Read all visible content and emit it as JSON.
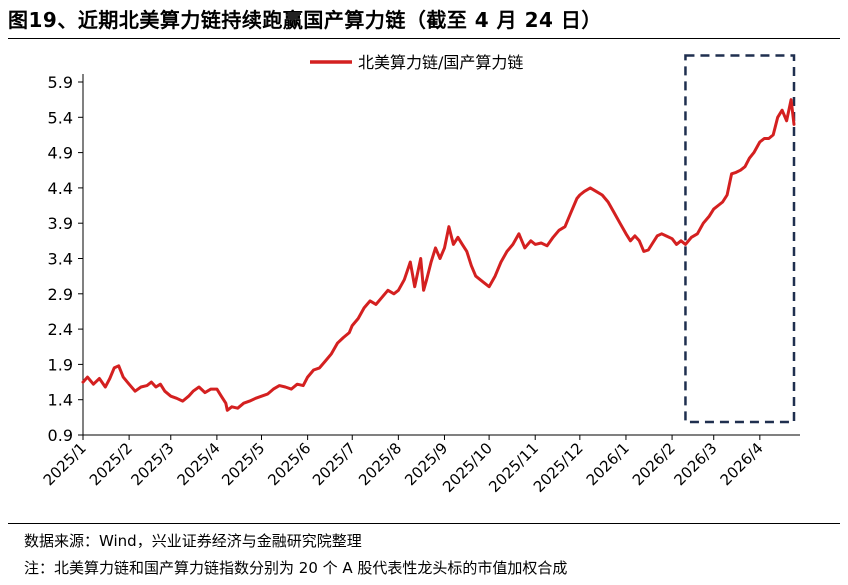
{
  "title": "图19、近期北美算力链持续跑赢国产算力链（截至 4 月 24 日）",
  "source": "数据来源：Wind，兴业证券经济与金融研究院整理",
  "note": "注：北美算力链和国产算力链指数分别为 20 个 A 股代表性龙头标的市值加权合成",
  "colors": {
    "line": "#d42020",
    "highlight_box": "#1f2f4f",
    "axis": "#000000"
  },
  "chart_data": {
    "type": "line",
    "title": "",
    "xlabel": "",
    "ylabel": "",
    "ylim": [
      0.9,
      5.9
    ],
    "yticks": [
      0.9,
      1.4,
      1.9,
      2.4,
      2.9,
      3.4,
      3.9,
      4.4,
      4.9,
      5.4,
      5.9
    ],
    "yticklabels": [
      "0.9",
      "1.4",
      "1.9",
      "2.4",
      "2.9",
      "3.4",
      "3.9",
      "4.4",
      "4.9",
      "5.4",
      "5.9"
    ],
    "xlim": [
      "2025-01-01",
      "2026-04-28"
    ],
    "xticks": [
      "2025-01-01",
      "2025-02-01",
      "2025-03-01",
      "2025-04-01",
      "2025-05-01",
      "2025-06-01",
      "2025-07-01",
      "2025-08-01",
      "2025-09-01",
      "2025-10-01",
      "2025-11-01",
      "2025-12-01",
      "2026-01-01",
      "2026-02-01",
      "2026-03-01",
      "2026-04-01"
    ],
    "xticklabels": [
      "2025/1",
      "2025/2",
      "2025/3",
      "2025/4",
      "2025/5",
      "2025/6",
      "2025/7",
      "2025/8",
      "2025/9",
      "2025/10",
      "2025/11",
      "2025/12",
      "2026/1",
      "2026/2",
      "2026/3",
      "2026/4"
    ],
    "grid": false,
    "legend_position": "top",
    "highlight": {
      "x": [
        "2026-02-10",
        "2026-04-28"
      ],
      "y": [
        1.0,
        5.85
      ],
      "style": "dashed"
    },
    "series": [
      {
        "name": "北美算力链/国产算力链",
        "x": [
          "2025-01-01",
          "2025-01-04",
          "2025-01-08",
          "2025-01-12",
          "2025-01-16",
          "2025-01-19",
          "2025-01-22",
          "2025-01-25",
          "2025-01-28",
          "2025-02-01",
          "2025-02-05",
          "2025-02-09",
          "2025-02-13",
          "2025-02-16",
          "2025-02-19",
          "2025-02-22",
          "2025-02-25",
          "2025-03-01",
          "2025-03-05",
          "2025-03-09",
          "2025-03-13",
          "2025-03-16",
          "2025-03-20",
          "2025-03-24",
          "2025-03-28",
          "2025-04-01",
          "2025-04-04",
          "2025-04-07",
          "2025-04-08",
          "2025-04-11",
          "2025-04-15",
          "2025-04-19",
          "2025-04-23",
          "2025-04-27",
          "2025-05-01",
          "2025-05-05",
          "2025-05-09",
          "2025-05-13",
          "2025-05-17",
          "2025-05-21",
          "2025-05-25",
          "2025-05-29",
          "2025-06-01",
          "2025-06-05",
          "2025-06-09",
          "2025-06-13",
          "2025-06-17",
          "2025-06-21",
          "2025-06-25",
          "2025-06-29",
          "2025-07-01",
          "2025-07-05",
          "2025-07-09",
          "2025-07-13",
          "2025-07-17",
          "2025-07-21",
          "2025-07-25",
          "2025-07-29",
          "2025-08-01",
          "2025-08-05",
          "2025-08-09",
          "2025-08-12",
          "2025-08-16",
          "2025-08-18",
          "2025-08-20",
          "2025-08-23",
          "2025-08-26",
          "2025-08-29",
          "2025-09-01",
          "2025-09-04",
          "2025-09-07",
          "2025-09-10",
          "2025-09-13",
          "2025-09-16",
          "2025-09-19",
          "2025-09-22",
          "2025-09-25",
          "2025-09-28",
          "2025-10-01",
          "2025-10-05",
          "2025-10-09",
          "2025-10-13",
          "2025-10-17",
          "2025-10-21",
          "2025-10-25",
          "2025-10-29",
          "2025-11-01",
          "2025-11-05",
          "2025-11-09",
          "2025-11-13",
          "2025-11-17",
          "2025-11-21",
          "2025-11-25",
          "2025-11-29",
          "2025-12-01",
          "2025-12-04",
          "2025-12-08",
          "2025-12-12",
          "2025-12-16",
          "2025-12-20",
          "2025-12-24",
          "2025-12-28",
          "2026-01-01",
          "2026-01-04",
          "2026-01-07",
          "2026-01-10",
          "2026-01-13",
          "2026-01-16",
          "2026-01-19",
          "2026-01-22",
          "2026-01-25",
          "2026-01-28",
          "2026-02-01",
          "2026-02-04",
          "2026-02-07",
          "2026-02-10",
          "2026-02-14",
          "2026-02-18",
          "2026-02-22",
          "2026-02-26",
          "2026-03-01",
          "2026-03-04",
          "2026-03-07",
          "2026-03-10",
          "2026-03-13",
          "2026-03-16",
          "2026-03-19",
          "2026-03-22",
          "2026-03-25",
          "2026-03-28",
          "2026-04-01",
          "2026-04-04",
          "2026-04-07",
          "2026-04-10",
          "2026-04-13",
          "2026-04-16",
          "2026-04-19",
          "2026-04-22",
          "2026-04-24"
        ],
        "values": [
          1.65,
          1.72,
          1.62,
          1.7,
          1.58,
          1.7,
          1.85,
          1.88,
          1.72,
          1.62,
          1.52,
          1.58,
          1.6,
          1.65,
          1.58,
          1.62,
          1.52,
          1.45,
          1.42,
          1.38,
          1.45,
          1.52,
          1.58,
          1.5,
          1.55,
          1.55,
          1.45,
          1.35,
          1.25,
          1.3,
          1.28,
          1.35,
          1.38,
          1.42,
          1.45,
          1.48,
          1.55,
          1.6,
          1.58,
          1.55,
          1.62,
          1.6,
          1.72,
          1.82,
          1.85,
          1.95,
          2.05,
          2.2,
          2.28,
          2.35,
          2.45,
          2.55,
          2.7,
          2.8,
          2.75,
          2.85,
          2.95,
          2.9,
          2.95,
          3.1,
          3.35,
          3.0,
          3.4,
          2.95,
          3.1,
          3.35,
          3.55,
          3.4,
          3.55,
          3.85,
          3.6,
          3.7,
          3.6,
          3.5,
          3.3,
          3.15,
          3.1,
          3.05,
          3.0,
          3.15,
          3.35,
          3.5,
          3.6,
          3.75,
          3.55,
          3.65,
          3.6,
          3.62,
          3.58,
          3.7,
          3.8,
          3.85,
          4.05,
          4.25,
          4.3,
          4.35,
          4.4,
          4.35,
          4.3,
          4.2,
          4.05,
          3.9,
          3.75,
          3.65,
          3.72,
          3.65,
          3.5,
          3.52,
          3.62,
          3.72,
          3.75,
          3.72,
          3.68,
          3.6,
          3.65,
          3.6,
          3.7,
          3.75,
          3.9,
          4.0,
          4.1,
          4.15,
          4.2,
          4.3,
          4.6,
          4.62,
          4.65,
          4.7,
          4.82,
          4.9,
          5.05,
          5.1,
          5.1,
          5.15,
          5.4,
          5.5,
          5.35,
          5.65,
          5.3
        ]
      }
    ]
  }
}
